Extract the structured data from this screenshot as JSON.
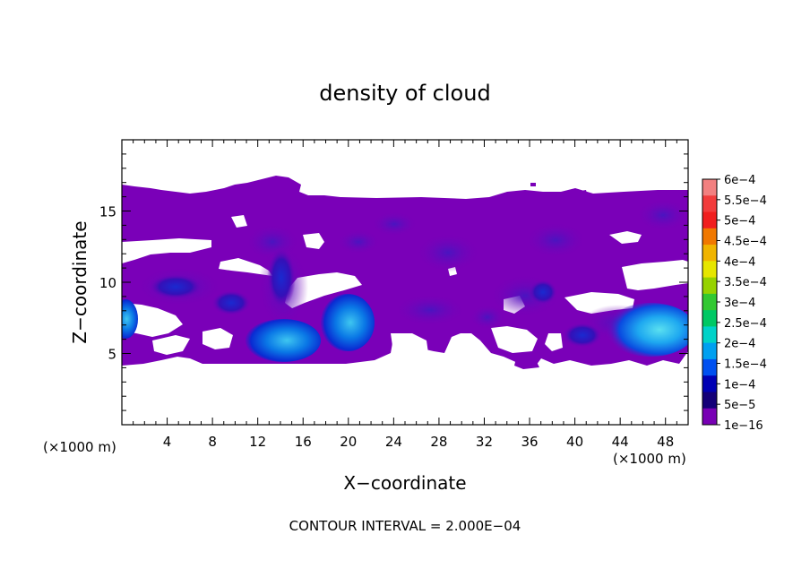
{
  "chart_data": {
    "type": "heatmap",
    "title": "density of cloud",
    "xlabel": "X−coordinate",
    "ylabel": "Z−coordinate",
    "x_unit_left": "(×1000 m)",
    "x_unit_right": "(×1000 m)",
    "footer": "CONTOUR INTERVAL = 2.000E−04",
    "xlim": [
      0,
      50
    ],
    "ylim": [
      0,
      20
    ],
    "x_ticks": [
      4,
      8,
      12,
      16,
      20,
      24,
      28,
      32,
      36,
      40,
      44,
      48
    ],
    "y_ticks": [
      5,
      10,
      15
    ],
    "colorbar": {
      "labels": [
        "6e−4",
        "5.5e−4",
        "5e−4",
        "4.5e−4",
        "4e−4",
        "3.5e−4",
        "3e−4",
        "2.5e−4",
        "2e−4",
        "1.5e−4",
        "1e−4",
        "5e−5",
        "1e−16"
      ],
      "colors": [
        "#f28080",
        "#f23c3c",
        "#f01e1e",
        "#f07800",
        "#f0b400",
        "#e6e600",
        "#96d200",
        "#32c832",
        "#00c864",
        "#00d2c8",
        "#00a0f0",
        "#0050f0",
        "#0000b4",
        "#140078",
        "#7800b4"
      ]
    },
    "fields": {
      "background_level": "1e−16",
      "cloud_band_z": [
        4.3,
        16.5
      ],
      "max_level_region": "1.5e−4"
    }
  }
}
